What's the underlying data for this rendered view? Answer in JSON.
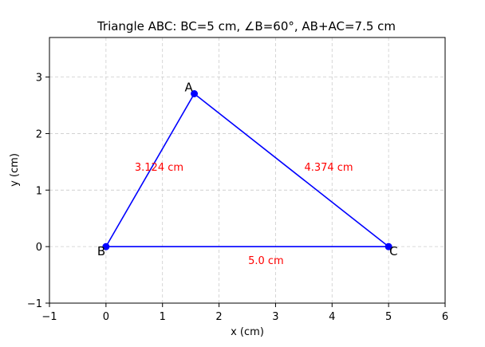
{
  "chart_data": {
    "type": "line",
    "title": "Triangle ABC: BC=5 cm, ∠B=60°, AB+AC=7.5 cm",
    "xlabel": "x (cm)",
    "ylabel": "y (cm)",
    "xlim": [
      -1,
      6
    ],
    "ylim": [
      -1,
      3.7
    ],
    "xticks": [
      -1,
      0,
      1,
      2,
      3,
      4,
      5,
      6
    ],
    "yticks": [
      -1,
      0,
      1,
      2,
      3
    ],
    "xtick_labels": [
      "−1",
      "0",
      "1",
      "2",
      "3",
      "4",
      "5",
      "6"
    ],
    "ytick_labels": [
      "−1",
      "0",
      "1",
      "2",
      "3"
    ],
    "grid": true,
    "line_color": "#0000ff",
    "label_color": "#ff0000",
    "vertices": [
      {
        "name": "A",
        "x": 1.562,
        "y": 2.705
      },
      {
        "name": "B",
        "x": 0,
        "y": 0
      },
      {
        "name": "C",
        "x": 5,
        "y": 0
      }
    ],
    "side_labels": [
      {
        "text": "3.124 cm",
        "x": 0.94,
        "y": 1.41
      },
      {
        "text": "4.374 cm",
        "x": 3.94,
        "y": 1.41
      },
      {
        "text": "5.0 cm",
        "x": 2.83,
        "y": -0.24
      }
    ]
  }
}
